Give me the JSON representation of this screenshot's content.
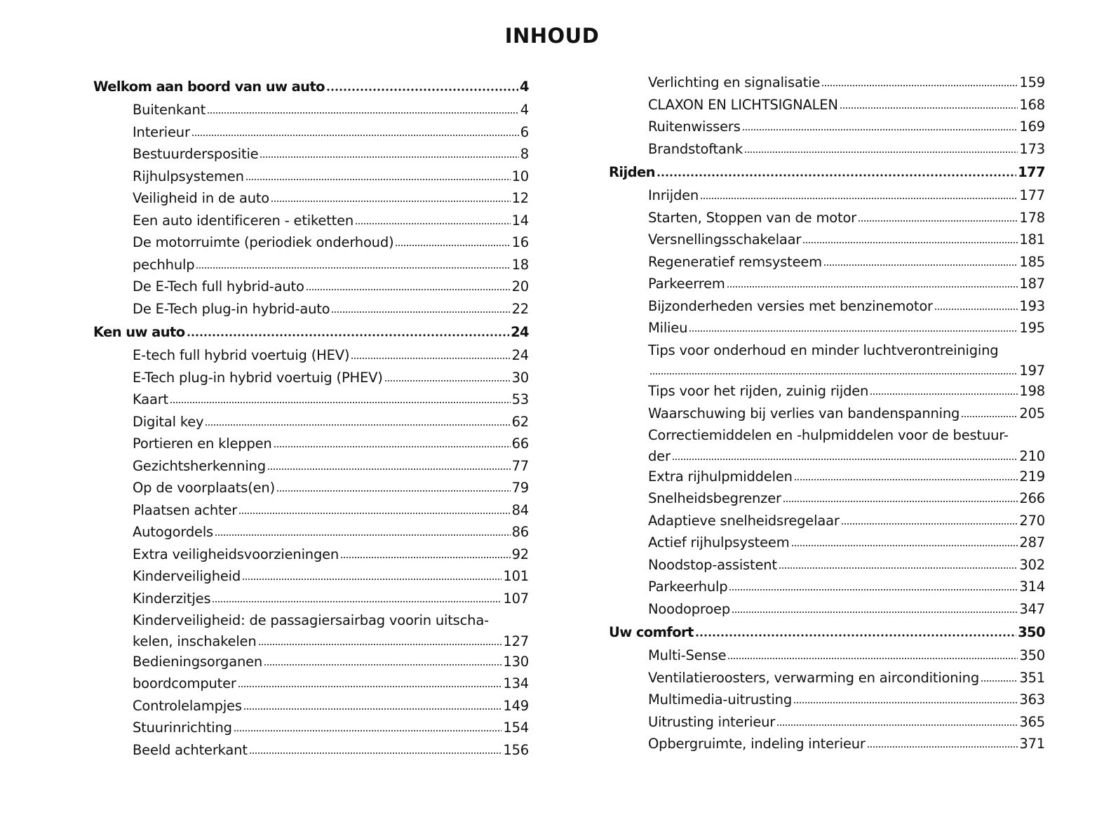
{
  "title": "INHOUD",
  "columns": [
    [
      {
        "type": "heading",
        "title": "Welkom aan boord van uw auto",
        "page": "4"
      },
      {
        "type": "sub",
        "title": "Buitenkant",
        "page": "4"
      },
      {
        "type": "sub",
        "title": "Interieur",
        "page": "6"
      },
      {
        "type": "sub",
        "title": "Bestuurderspositie",
        "page": "8"
      },
      {
        "type": "sub",
        "title": "Rijhulpsystemen",
        "page": "10"
      },
      {
        "type": "sub",
        "title": "Veiligheid in de auto",
        "page": "12"
      },
      {
        "type": "sub",
        "title": "Een auto identificeren - etiketten",
        "page": "14"
      },
      {
        "type": "sub",
        "title": "De motorruimte (periodiek onderhoud)",
        "page": "16"
      },
      {
        "type": "sub",
        "title": "pechhulp",
        "page": "18"
      },
      {
        "type": "sub",
        "title": "De E-Tech full hybrid-auto",
        "page": "20"
      },
      {
        "type": "sub",
        "title": "De E-Tech plug-in hybrid-auto",
        "page": "22"
      },
      {
        "type": "heading",
        "title": "Ken uw auto",
        "page": "24"
      },
      {
        "type": "sub",
        "title": "E-tech full hybrid voertuig (HEV)",
        "page": "24"
      },
      {
        "type": "sub",
        "title": "E-Tech plug-in hybrid voertuig (PHEV)",
        "page": "30"
      },
      {
        "type": "sub",
        "title": "Kaart",
        "page": "53"
      },
      {
        "type": "sub",
        "title": "Digital key",
        "page": "62"
      },
      {
        "type": "sub",
        "title": "Portieren en kleppen",
        "page": "66"
      },
      {
        "type": "sub",
        "title": "Gezichtsherkenning",
        "page": "77"
      },
      {
        "type": "sub",
        "title": "Op de voorplaats(en)",
        "page": "79"
      },
      {
        "type": "sub",
        "title": "Plaatsen achter",
        "page": "84"
      },
      {
        "type": "sub",
        "title": "Autogordels",
        "page": "86"
      },
      {
        "type": "sub",
        "title": "Extra veiligheidsvoorzieningen",
        "page": "92"
      },
      {
        "type": "sub",
        "title": "Kinderveiligheid",
        "page": "101"
      },
      {
        "type": "sub",
        "title": "Kinderzitjes",
        "page": "107"
      },
      {
        "type": "sub",
        "title": "Kinderveiligheid: de passagiersairbag voorin uitscha-",
        "title_cont": "kelen, inschakelen",
        "page": "127"
      },
      {
        "type": "sub",
        "title": "Bedieningsorganen",
        "page": "130"
      },
      {
        "type": "sub",
        "title": "boordcomputer",
        "page": "134"
      },
      {
        "type": "sub",
        "title": "Controlelampjes",
        "page": "149"
      },
      {
        "type": "sub",
        "title": "Stuurinrichting",
        "page": "154"
      },
      {
        "type": "sub",
        "title": "Beeld achterkant",
        "page": "156"
      }
    ],
    [
      {
        "type": "sub",
        "title": "Verlichting en signalisatie",
        "page": "159"
      },
      {
        "type": "sub",
        "title": "CLAXON EN LICHTSIGNALEN",
        "page": "168"
      },
      {
        "type": "sub",
        "title": "Ruitenwissers",
        "page": "169"
      },
      {
        "type": "sub",
        "title": "Brandstoftank",
        "page": "173"
      },
      {
        "type": "heading",
        "title": "Rijden",
        "page": "177"
      },
      {
        "type": "sub",
        "title": "Inrijden",
        "page": "177"
      },
      {
        "type": "sub",
        "title": "Starten, Stoppen van de motor",
        "page": "178"
      },
      {
        "type": "sub",
        "title": "Versnellingsschakelaar",
        "page": "181"
      },
      {
        "type": "sub",
        "title": "Regeneratief remsysteem",
        "page": "185"
      },
      {
        "type": "sub",
        "title": "Parkeerrem",
        "page": "187"
      },
      {
        "type": "sub",
        "title": "Bijzonderheden versies met benzinemotor",
        "page": "193"
      },
      {
        "type": "sub",
        "title": "Milieu",
        "page": "195"
      },
      {
        "type": "sub",
        "title": "Tips voor onderhoud en minder luchtverontreiniging",
        "title_cont": "",
        "page": "197"
      },
      {
        "type": "sub",
        "title": "Tips voor het rijden, zuinig rijden",
        "page": "198"
      },
      {
        "type": "sub",
        "title": "Waarschuwing bij verlies van bandenspanning",
        "page": "205"
      },
      {
        "type": "sub",
        "title": "Correctiemiddelen en -hulpmiddelen voor de bestuur-",
        "title_cont": "der",
        "page": "210"
      },
      {
        "type": "sub",
        "title": "Extra rijhulpmiddelen",
        "page": "219"
      },
      {
        "type": "sub",
        "title": "Snelheidsbegrenzer",
        "page": "266"
      },
      {
        "type": "sub",
        "title": "Adaptieve snelheidsregelaar",
        "page": "270"
      },
      {
        "type": "sub",
        "title": "Actief rijhulpsysteem",
        "page": "287"
      },
      {
        "type": "sub",
        "title": "Noodstop-assistent",
        "page": "302"
      },
      {
        "type": "sub",
        "title": "Parkeerhulp",
        "page": "314"
      },
      {
        "type": "sub",
        "title": "Noodoproep",
        "page": "347"
      },
      {
        "type": "heading",
        "title": "Uw comfort",
        "page": "350"
      },
      {
        "type": "sub",
        "title": "Multi-Sense",
        "page": "350"
      },
      {
        "type": "sub",
        "title": "Ventilatieroosters, verwarming en airconditioning",
        "page": "351"
      },
      {
        "type": "sub",
        "title": "Multimedia-uitrusting",
        "page": "363"
      },
      {
        "type": "sub",
        "title": "Uitrusting interieur",
        "page": "365"
      },
      {
        "type": "sub",
        "title": "Opbergruimte, indeling interieur",
        "page": "371"
      }
    ]
  ]
}
